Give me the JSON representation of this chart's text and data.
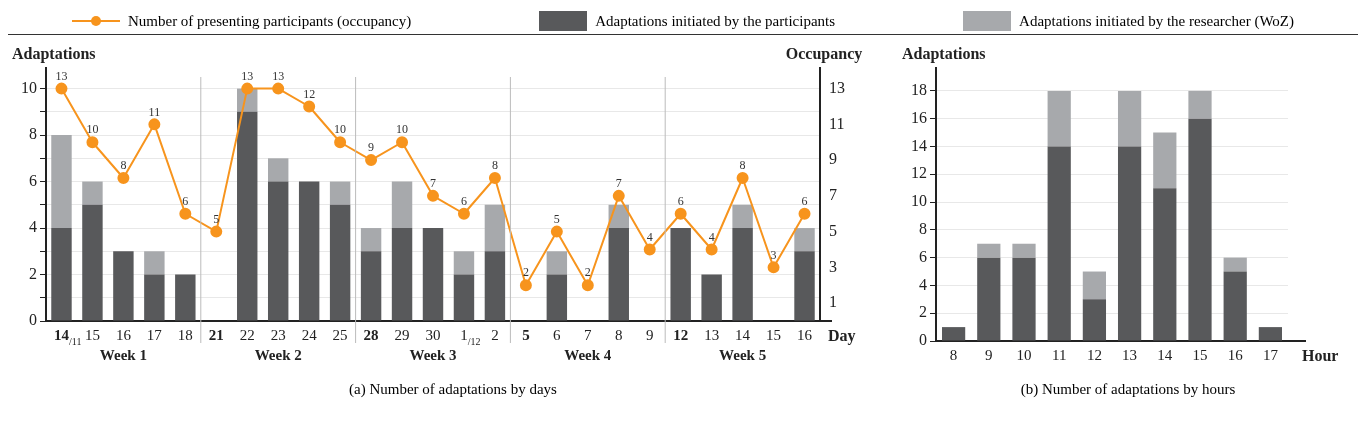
{
  "chart_data": [
    {
      "type": "bar",
      "title": "(a) Number of adaptations by days",
      "xlabel": "Day",
      "ylabel": "Adaptations",
      "y2label": "Occupancy",
      "categories": [
        "14$_{/11}$",
        "15",
        "16",
        "17",
        "18",
        "21",
        "22",
        "23",
        "24",
        "25",
        "28",
        "29",
        "30",
        "1$_{/12}$",
        "2",
        "5",
        "6",
        "7",
        "8",
        "9",
        "12",
        "13",
        "14",
        "15",
        "16"
      ],
      "series": [
        {
          "name": "Adaptations initiated by the participants",
          "color": "#58595b",
          "values": [
            4,
            5,
            3,
            2,
            2,
            0,
            9,
            6,
            6,
            5,
            3,
            4,
            4,
            2,
            3,
            0,
            2,
            0,
            4,
            0,
            4,
            2,
            4,
            0,
            3
          ]
        },
        {
          "name": "Adaptations initiated by the researcher (WoZ)",
          "color": "#a7a9ac",
          "values": [
            4,
            1,
            0,
            1,
            0,
            0,
            1,
            1,
            0,
            1,
            1,
            2,
            0,
            1,
            2,
            0,
            1,
            0,
            1,
            0,
            0,
            0,
            1,
            0,
            1
          ]
        },
        {
          "name": "Number of presenting participants (occupancy)",
          "type": "line",
          "axis": "y2",
          "color": "#f7941d",
          "values": [
            13,
            10,
            8,
            11,
            6,
            5,
            13,
            13,
            12,
            10,
            9,
            10,
            7,
            6,
            8,
            2,
            5,
            2,
            7,
            4,
            6,
            4,
            8,
            3,
            6
          ],
          "value_labels": [
            "13",
            "10",
            "8",
            "11",
            "6",
            "5",
            "13",
            "13",
            "12",
            "10",
            "9",
            "10",
            "7",
            "6",
            "8",
            "2",
            "5",
            "2",
            "7",
            "4",
            "6",
            "4",
            "8",
            "3",
            "6"
          ]
        }
      ],
      "stacked": true,
      "marker": "circle",
      "line_style": "solid",
      "ylim": [
        0,
        10.5
      ],
      "yticks": [
        0,
        {
          "value": 1,
          "label": null
        },
        2,
        {
          "value": 3,
          "label": null
        },
        4,
        {
          "value": 5,
          "label": null
        },
        6,
        {
          "value": 7,
          "label": null
        },
        8,
        {
          "value": 9,
          "label": null
        },
        10
      ],
      "y2lim": [
        0,
        13.65
      ],
      "y2ticks": [
        1,
        3,
        5,
        7,
        9,
        11,
        13
      ],
      "grid": "y",
      "legend": "top",
      "annotations": [
        "Week 1",
        "Week 2",
        "Week 3",
        "Week 4",
        "Week 5"
      ]
    },
    {
      "type": "bar",
      "title": "(b) Number of adaptations by hours",
      "xlabel": "Hour",
      "ylabel": "Adaptations",
      "categories": [
        "8",
        "9",
        "10",
        "11",
        "12",
        "13",
        "14",
        "15",
        "16",
        "17"
      ],
      "series": [
        {
          "color": "#58595b",
          "values": [
            1,
            6,
            6,
            14,
            3,
            14,
            11,
            16,
            5,
            1
          ]
        },
        {
          "color": "#a7a9ac",
          "values": [
            0,
            1,
            1,
            4,
            2,
            4,
            4,
            2,
            1,
            0
          ]
        }
      ],
      "stacked": true,
      "ylim": [
        0,
        19
      ],
      "yticks": [
        0,
        2,
        4,
        6,
        8,
        10,
        12,
        14,
        16,
        18
      ],
      "grid": "y"
    }
  ]
}
